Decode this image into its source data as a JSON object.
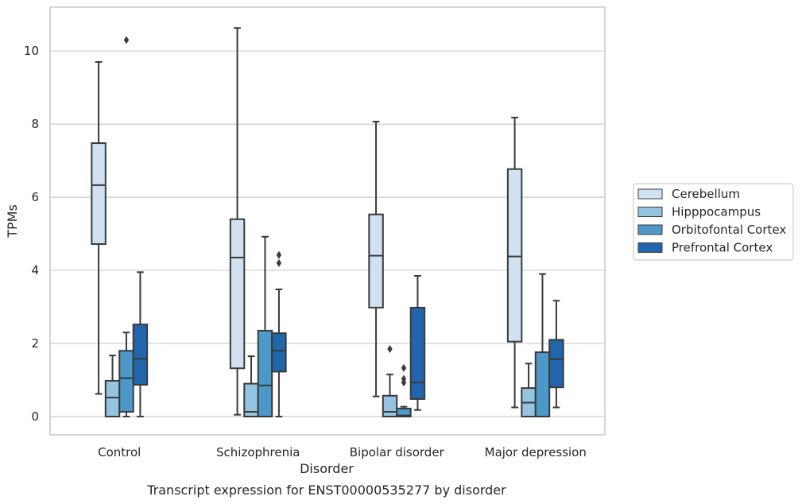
{
  "caption": "Transcript expression for ENST00000535277 by disorder",
  "chart_data": {
    "type": "box",
    "xlabel": "Disorder",
    "ylabel": "TPMs",
    "ylim": [
      -0.5,
      11.2
    ],
    "yticks": [
      0,
      2,
      4,
      6,
      8,
      10
    ],
    "grid": "y",
    "legend_position": "right",
    "categories": [
      "Control",
      "Schizophrenia",
      "Bipolar disorder",
      "Major depression"
    ],
    "series": [
      {
        "name": "Cerebellum",
        "color": "#d0e1f2",
        "boxes": [
          {
            "whislo": 0.62,
            "q1": 4.72,
            "med": 6.33,
            "q3": 7.48,
            "whishi": 9.7,
            "fliers": []
          },
          {
            "whislo": 0.05,
            "q1": 1.32,
            "med": 4.35,
            "q3": 5.4,
            "whishi": 10.63,
            "fliers": []
          },
          {
            "whislo": 0.55,
            "q1": 2.98,
            "med": 4.4,
            "q3": 5.53,
            "whishi": 8.07,
            "fliers": []
          },
          {
            "whislo": 0.25,
            "q1": 2.05,
            "med": 4.38,
            "q3": 6.77,
            "whishi": 8.18,
            "fliers": []
          }
        ]
      },
      {
        "name": "Hipppocampus",
        "color": "#94c4df",
        "boxes": [
          {
            "whislo": 0.0,
            "q1": 0.0,
            "med": 0.52,
            "q3": 0.98,
            "whishi": 1.67,
            "fliers": []
          },
          {
            "whislo": 0.0,
            "q1": 0.0,
            "med": 0.13,
            "q3": 0.9,
            "whishi": 1.65,
            "fliers": []
          },
          {
            "whislo": 0.0,
            "q1": 0.0,
            "med": 0.13,
            "q3": 0.57,
            "whishi": 1.15,
            "fliers": [
              1.85
            ]
          },
          {
            "whislo": 0.0,
            "q1": 0.0,
            "med": 0.38,
            "q3": 0.78,
            "whishi": 1.45,
            "fliers": []
          }
        ]
      },
      {
        "name": "Orbitofontal Cortex",
        "color": "#4b98c9",
        "boxes": [
          {
            "whislo": 0.0,
            "q1": 0.13,
            "med": 1.05,
            "q3": 1.8,
            "whishi": 2.3,
            "fliers": [
              10.3
            ]
          },
          {
            "whislo": 0.0,
            "q1": 0.0,
            "med": 0.85,
            "q3": 2.35,
            "whishi": 4.92,
            "fliers": []
          },
          {
            "whislo": 0.0,
            "q1": 0.0,
            "med": 0.03,
            "q3": 0.22,
            "whishi": 0.27,
            "fliers": [
              0.93,
              1.03,
              1.33
            ]
          },
          {
            "whislo": 0.0,
            "q1": 0.0,
            "med": 0.0,
            "q3": 1.76,
            "whishi": 3.9,
            "fliers": []
          }
        ]
      },
      {
        "name": "Prefrontal Cortex",
        "color": "#2166ac",
        "boxes": [
          {
            "whislo": 0.0,
            "q1": 0.87,
            "med": 1.58,
            "q3": 2.52,
            "whishi": 3.95,
            "fliers": []
          },
          {
            "whislo": 0.0,
            "q1": 1.23,
            "med": 1.8,
            "q3": 2.28,
            "whishi": 3.48,
            "fliers": [
              4.2,
              4.42
            ]
          },
          {
            "whislo": 0.18,
            "q1": 0.48,
            "med": 0.93,
            "q3": 2.98,
            "whishi": 3.85,
            "fliers": []
          },
          {
            "whislo": 0.25,
            "q1": 0.8,
            "med": 1.57,
            "q3": 2.1,
            "whishi": 3.17,
            "fliers": []
          }
        ]
      }
    ]
  }
}
